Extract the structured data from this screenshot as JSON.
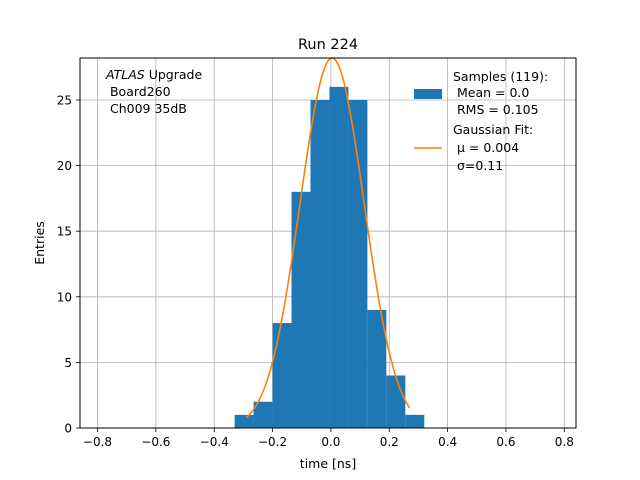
{
  "chart_data": {
    "type": "bar",
    "title": "Run 224",
    "xlabel": "time [ns]",
    "ylabel": "Entries",
    "xlim": [
      -0.86,
      0.84
    ],
    "ylim": [
      0,
      28.2
    ],
    "grid": true,
    "xticks": [
      -0.8,
      -0.6,
      -0.4,
      -0.2,
      0.0,
      0.2,
      0.4,
      0.6,
      0.8
    ],
    "xtick_labels": [
      "−0.8",
      "−0.6",
      "−0.4",
      "−0.2",
      "0.0",
      "0.2",
      "0.4",
      "0.6",
      "0.8"
    ],
    "yticks": [
      0,
      5,
      10,
      15,
      20,
      25
    ],
    "ytick_labels": [
      "0",
      "5",
      "10",
      "15",
      "20",
      "25"
    ],
    "histogram": {
      "name": "Samples (119):",
      "color": "#1f77b4",
      "bin_edges": [
        -0.33,
        -0.265,
        -0.2,
        -0.135,
        -0.07,
        -0.005,
        0.06,
        0.125,
        0.19,
        0.255,
        0.32
      ],
      "counts": [
        1,
        2,
        8,
        18,
        25,
        26,
        25,
        9,
        4,
        1
      ]
    },
    "fit": {
      "name": "Gaussian Fit:",
      "color": "#ff7f0e",
      "amplitude": 28.2,
      "mu": 0.004,
      "sigma": 0.11,
      "x_range": [
        -0.29,
        0.27
      ]
    },
    "legend": {
      "position": "top-right",
      "samples_title": "Samples (119):",
      "samples_mean": " Mean = 0.0",
      "samples_rms": " RMS = 0.105",
      "fit_title": "Gaussian Fit:",
      "fit_mu": " μ = 0.004",
      "fit_sigma": " σ=0.11"
    },
    "annotation": {
      "line1_italic": "ATLAS",
      "line1_rest": " Upgrade",
      "line2": " Board260",
      "line3": " Ch009 35dB"
    }
  }
}
